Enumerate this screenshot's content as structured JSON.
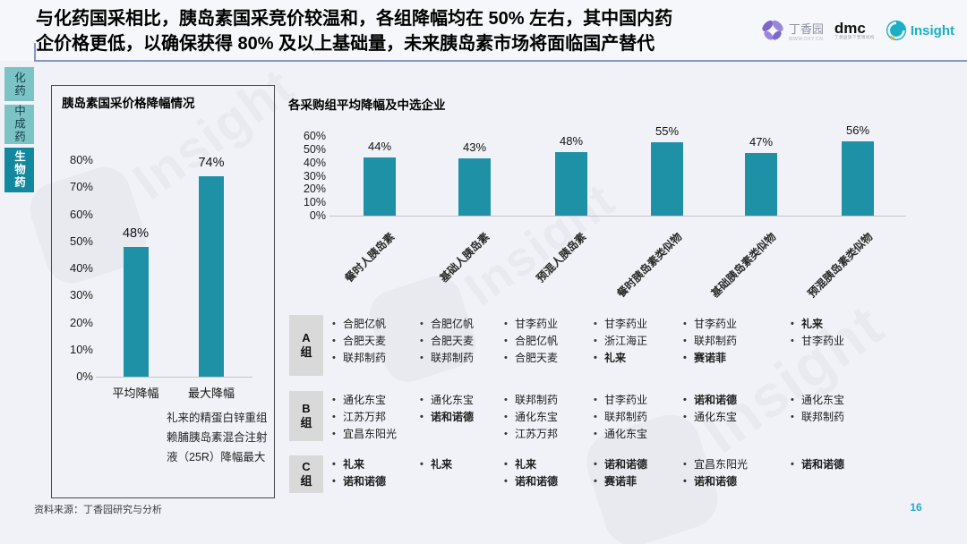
{
  "header": {
    "title_line1": "与化药国采相比，胰岛素国采竞价较温和，各组降幅均在 50% 左右，其中国内药",
    "title_line2": "企价格更低，以确保获得 80% 及以上基础量，未来胰岛素市场将面临国产替代"
  },
  "logos": {
    "dxy_name": "丁香园",
    "dxy_url": "WWW.DXY.CN",
    "dmc_name": "dmc",
    "dmc_tagline": "丁香园旗下营销机构",
    "insight_name": "Insight"
  },
  "sidebar": {
    "tabs": [
      {
        "label": "化药",
        "active": false
      },
      {
        "label": "中成药",
        "active": false
      },
      {
        "label": "生物药",
        "active": true
      }
    ]
  },
  "watermark": {
    "text": "Insight"
  },
  "chart_data": [
    {
      "type": "bar",
      "title": "胰岛素国采价格降幅情况",
      "categories": [
        "平均降幅",
        "最大降幅"
      ],
      "values": [
        48,
        74
      ],
      "value_labels": [
        "48%",
        "74%"
      ],
      "yticks": [
        "0%",
        "10%",
        "20%",
        "30%",
        "40%",
        "50%",
        "60%",
        "70%",
        "80%"
      ],
      "ylim": [
        0,
        80
      ],
      "grid": false,
      "bar_color": "#1f91a6",
      "annotation": "礼来的精蛋白锌重组赖脯胰岛素混合注射液（25R）降幅最大"
    },
    {
      "type": "bar",
      "title": "各采购组平均降幅及中选企业",
      "categories": [
        "餐时人胰岛素",
        "基础人胰岛素",
        "预混人胰岛素",
        "餐时胰岛素类似物",
        "基础胰岛素类似物",
        "预混胰岛素类似物"
      ],
      "values": [
        44,
        43,
        48,
        55,
        47,
        56
      ],
      "value_labels": [
        "44%",
        "43%",
        "48%",
        "55%",
        "47%",
        "56%"
      ],
      "yticks": [
        "0%",
        "10%",
        "20%",
        "30%",
        "40%",
        "50%",
        "60%"
      ],
      "ylim": [
        0,
        60
      ],
      "grid": false,
      "bar_color": "#1f91a6"
    },
    {
      "type": "table",
      "row_labels": [
        "A组",
        "B组",
        "C组"
      ],
      "columns": [
        "餐时人胰岛素",
        "基础人胰岛素",
        "预混人胰岛素",
        "餐时胰岛素类似物",
        "基础胰岛素类似物",
        "预混胰岛素类似物"
      ],
      "cells": [
        [
          [
            {
              "t": "合肥亿帆"
            },
            {
              "t": "合肥天麦"
            },
            {
              "t": "联邦制药"
            }
          ],
          [
            {
              "t": "合肥亿帆"
            },
            {
              "t": "合肥天麦"
            },
            {
              "t": "联邦制药"
            }
          ],
          [
            {
              "t": "甘李药业"
            },
            {
              "t": "合肥亿帆"
            },
            {
              "t": "合肥天麦"
            }
          ],
          [
            {
              "t": "甘李药业"
            },
            {
              "t": "浙江海正"
            },
            {
              "t": "礼来",
              "b": true
            }
          ],
          [
            {
              "t": "甘李药业"
            },
            {
              "t": "联邦制药"
            },
            {
              "t": "赛诺菲",
              "b": true
            }
          ],
          [
            {
              "t": "礼来",
              "b": true
            },
            {
              "t": "甘李药业"
            }
          ]
        ],
        [
          [
            {
              "t": "通化东宝"
            },
            {
              "t": "江苏万邦"
            },
            {
              "t": "宜昌东阳光"
            }
          ],
          [
            {
              "t": "通化东宝"
            },
            {
              "t": "诺和诺德",
              "b": true
            }
          ],
          [
            {
              "t": "联邦制药"
            },
            {
              "t": "通化东宝"
            },
            {
              "t": "江苏万邦"
            }
          ],
          [
            {
              "t": "甘李药业"
            },
            {
              "t": "联邦制药"
            },
            {
              "t": "通化东宝"
            }
          ],
          [
            {
              "t": "诺和诺德",
              "b": true
            },
            {
              "t": "通化东宝"
            }
          ],
          [
            {
              "t": "通化东宝"
            },
            {
              "t": "联邦制药"
            }
          ]
        ],
        [
          [
            {
              "t": "礼来",
              "b": true
            },
            {
              "t": "诺和诺德",
              "b": true
            }
          ],
          [
            {
              "t": "礼来",
              "b": true
            }
          ],
          [
            {
              "t": "礼来",
              "b": true
            },
            {
              "t": "诺和诺德",
              "b": true
            }
          ],
          [
            {
              "t": "诺和诺德",
              "b": true
            },
            {
              "t": "赛诺菲",
              "b": true
            }
          ],
          [
            {
              "t": "宜昌东阳光"
            },
            {
              "t": "诺和诺德",
              "b": true
            }
          ],
          [
            {
              "t": "诺和诺德",
              "b": true
            }
          ]
        ]
      ]
    }
  ],
  "footer": {
    "source": "资料来源：丁香园研究与分析",
    "page": "16"
  },
  "colors": {
    "bar": "#1f91a6",
    "tab_light_bg": "#7cc3c6",
    "tab_active_bg": "#12889e",
    "header_rule": "#8696c8",
    "page_number": "#29a9cc",
    "insight_teal": "#18afc7",
    "dxy_purple": "#7d67c9",
    "group_label_bg": "#d9d9d9"
  }
}
